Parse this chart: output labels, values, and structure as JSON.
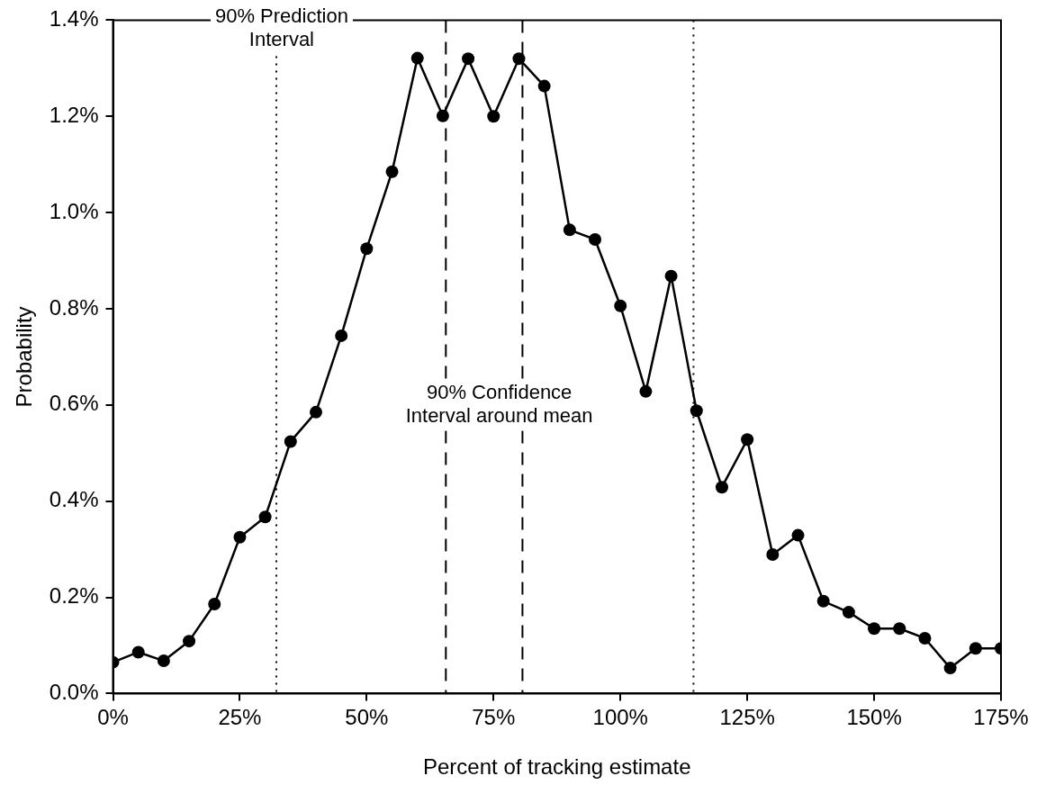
{
  "chart_data": {
    "type": "line",
    "xlabel": "Percent of tracking estimate",
    "ylabel": "Probability",
    "x": [
      0,
      5,
      10,
      15,
      20,
      25,
      30,
      35,
      40,
      45,
      50,
      55,
      60,
      65,
      70,
      75,
      80,
      85,
      90,
      95,
      100,
      105,
      110,
      115,
      120,
      125,
      130,
      135,
      140,
      145,
      150,
      155,
      160,
      165,
      170,
      175
    ],
    "series": [
      {
        "color": "#000000",
        "values": [
          0.065,
          0.086,
          0.068,
          0.109,
          0.186,
          0.325,
          0.367,
          0.524,
          0.585,
          0.744,
          0.925,
          1.085,
          1.321,
          1.201,
          1.32,
          1.2,
          1.32,
          1.263,
          0.964,
          0.944,
          0.806,
          0.628,
          0.868,
          0.588,
          0.429,
          0.528,
          0.289,
          0.329,
          0.192,
          0.169,
          0.135,
          0.135,
          0.115,
          0.053,
          0.094,
          0.094
        ]
      }
    ],
    "xlim": [
      0,
      175
    ],
    "xticks": [
      {
        "value": 0,
        "label": "0%"
      },
      {
        "value": 25,
        "label": "25%"
      },
      {
        "value": 50,
        "label": "50%"
      },
      {
        "value": 75,
        "label": "75%"
      },
      {
        "value": 100,
        "label": "100%"
      },
      {
        "value": 125,
        "label": "125%"
      },
      {
        "value": 150,
        "label": "150%"
      },
      {
        "value": 175,
        "label": "175%"
      }
    ],
    "ylim": [
      0,
      1.4
    ],
    "yticks": [
      {
        "value": 0,
        "label": "0.0%"
      },
      {
        "value": 0.2,
        "label": "0.2%"
      },
      {
        "value": 0.4,
        "label": "0.4%"
      },
      {
        "value": 0.6,
        "label": "0.6%"
      },
      {
        "value": 0.8,
        "label": "0.8%"
      },
      {
        "value": 1.0,
        "label": "1.0%"
      },
      {
        "value": 1.2,
        "label": "1.2%"
      },
      {
        "value": 1.4,
        "label": "1.4%"
      }
    ],
    "grid": false,
    "marker": "circle",
    "line_style": "solid",
    "ref_lines": [
      {
        "axis": "x",
        "value": 32.2,
        "line_style": "dotted"
      },
      {
        "axis": "x",
        "value": 114.4,
        "line_style": "dotted"
      },
      {
        "axis": "x",
        "value": 65.6,
        "line_style": "dashed"
      },
      {
        "axis": "x",
        "value": 80.7,
        "line_style": "dashed"
      }
    ],
    "annotations": [
      "90% Prediction\nInterval",
      "90% Confidence\nInterval around mean"
    ]
  }
}
